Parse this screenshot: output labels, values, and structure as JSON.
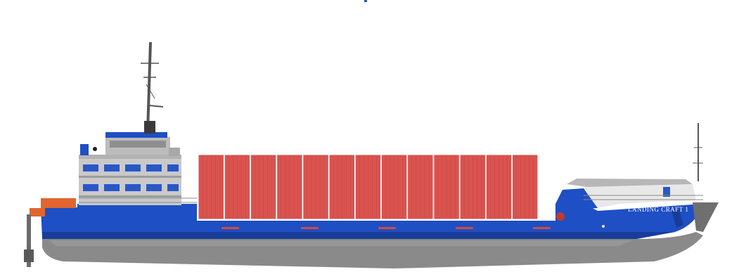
{
  "hull_name": "LANDING CRAFT 1",
  "colors": {
    "hull_blue": "#1f4fc4",
    "hull_grey": "#8a8a8a",
    "container_red": "#d9534f",
    "superstructure_grey": "#c9c9c9",
    "accent_orange": "#e0662e"
  }
}
